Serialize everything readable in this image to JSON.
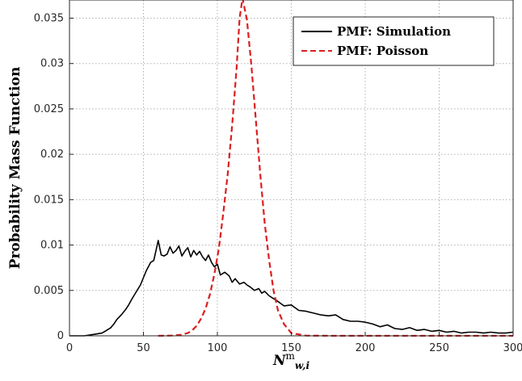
{
  "chart_data": {
    "type": "line",
    "xlabel_base": "N",
    "xlabel_sup": "m",
    "xlabel_sub": "w,i",
    "ylabel": "Probability Mass Function",
    "xlim": [
      0,
      300
    ],
    "ylim": [
      0,
      0.037
    ],
    "grid": true,
    "legend_position": "top-right",
    "x_ticks": [
      0,
      50,
      100,
      150,
      200,
      250,
      300
    ],
    "x_tick_labels": [
      "0",
      "50",
      "100",
      "150",
      "200",
      "250",
      "300"
    ],
    "y_ticks": [
      0,
      0.005,
      0.01,
      0.015,
      0.02,
      0.025,
      0.03,
      0.035
    ],
    "y_tick_labels": [
      "0",
      "0.005",
      "0.01",
      "0.015",
      "0.02",
      "0.025",
      "0.03",
      "0.035"
    ],
    "series": [
      {
        "name": "PMF: Simulation",
        "color": "#000000",
        "style": "solid",
        "x": [
          0,
          10,
          18,
          22,
          25,
          28,
          30,
          32,
          35,
          38,
          40,
          42,
          45,
          48,
          50,
          52,
          55,
          57,
          60,
          62,
          64,
          66,
          68,
          70,
          72,
          74,
          76,
          78,
          80,
          82,
          84,
          86,
          88,
          90,
          92,
          94,
          96,
          98,
          100,
          102,
          105,
          108,
          110,
          112,
          115,
          118,
          120,
          122,
          125,
          128,
          130,
          132,
          135,
          138,
          140,
          145,
          150,
          155,
          160,
          165,
          170,
          175,
          180,
          185,
          190,
          195,
          200,
          205,
          210,
          215,
          220,
          225,
          230,
          235,
          240,
          245,
          250,
          255,
          260,
          265,
          270,
          275,
          280,
          285,
          290,
          295,
          300
        ],
        "y": [
          0,
          0,
          0.0002,
          0.0003,
          0.0006,
          0.0009,
          0.0013,
          0.0018,
          0.0023,
          0.0029,
          0.0034,
          0.004,
          0.0048,
          0.0056,
          0.0064,
          0.0072,
          0.0081,
          0.0083,
          0.0105,
          0.0089,
          0.0088,
          0.009,
          0.0098,
          0.0091,
          0.0094,
          0.0099,
          0.0088,
          0.0093,
          0.0097,
          0.0087,
          0.0094,
          0.0089,
          0.0093,
          0.0087,
          0.0083,
          0.0089,
          0.0081,
          0.0076,
          0.0079,
          0.0067,
          0.007,
          0.0066,
          0.0059,
          0.0063,
          0.0057,
          0.0059,
          0.0056,
          0.0054,
          0.005,
          0.0052,
          0.0047,
          0.0049,
          0.0044,
          0.0041,
          0.0039,
          0.0033,
          0.0034,
          0.0028,
          0.0027,
          0.0025,
          0.0023,
          0.0022,
          0.0023,
          0.0018,
          0.0016,
          0.0016,
          0.0015,
          0.0013,
          0.001,
          0.0012,
          0.0008,
          0.0007,
          0.0009,
          0.0006,
          0.0007,
          0.0005,
          0.0006,
          0.0004,
          0.0005,
          0.0003,
          0.0004,
          0.0004,
          0.0003,
          0.0004,
          0.0003,
          0.0003,
          0.0004
        ]
      },
      {
        "name": "PMF: Poisson",
        "color": "#dc1e1e",
        "style": "dashed",
        "x": [
          60,
          70,
          75,
          80,
          83,
          86,
          89,
          92,
          95,
          98,
          101,
          104,
          107,
          110,
          113,
          115,
          117,
          120,
          123,
          126,
          129,
          132,
          135,
          138,
          141,
          145,
          150,
          160,
          180,
          200,
          250,
          300
        ],
        "y": [
          0,
          3e-05,
          0.0001,
          0.0003,
          0.0006,
          0.0011,
          0.0019,
          0.003,
          0.0046,
          0.0068,
          0.0096,
          0.0135,
          0.0178,
          0.0232,
          0.0295,
          0.035,
          0.0372,
          0.0348,
          0.0298,
          0.0238,
          0.0178,
          0.0124,
          0.0083,
          0.005,
          0.0028,
          0.0013,
          0.0003,
          2e-05,
          0,
          0,
          0,
          0
        ]
      }
    ]
  }
}
